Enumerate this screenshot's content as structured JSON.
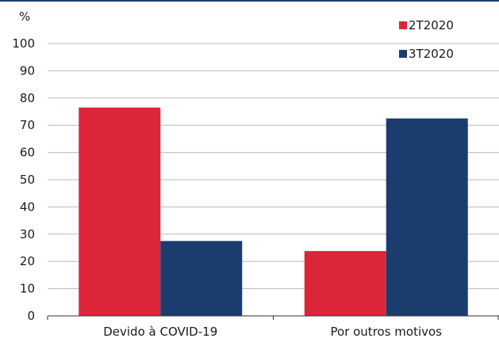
{
  "chart_data": {
    "type": "bar",
    "unit_label": "%",
    "categories": [
      "Devido à COVID-19",
      "Por outros motivos"
    ],
    "series": [
      {
        "name": "2T2020",
        "color": "#dc2538",
        "values": [
          76.5,
          23.8
        ]
      },
      {
        "name": "3T2020",
        "color": "#1b3d6e",
        "values": [
          27.5,
          72.5
        ]
      }
    ],
    "ylim": [
      0,
      100
    ],
    "yticks": [
      0,
      10,
      20,
      30,
      40,
      50,
      60,
      70,
      80,
      90,
      100
    ],
    "grid": true,
    "legend_placement": "top-right",
    "colors": {
      "top_rule": "#1b3d6e",
      "grid": "#b8b8b8",
      "axis": "#333333"
    }
  }
}
